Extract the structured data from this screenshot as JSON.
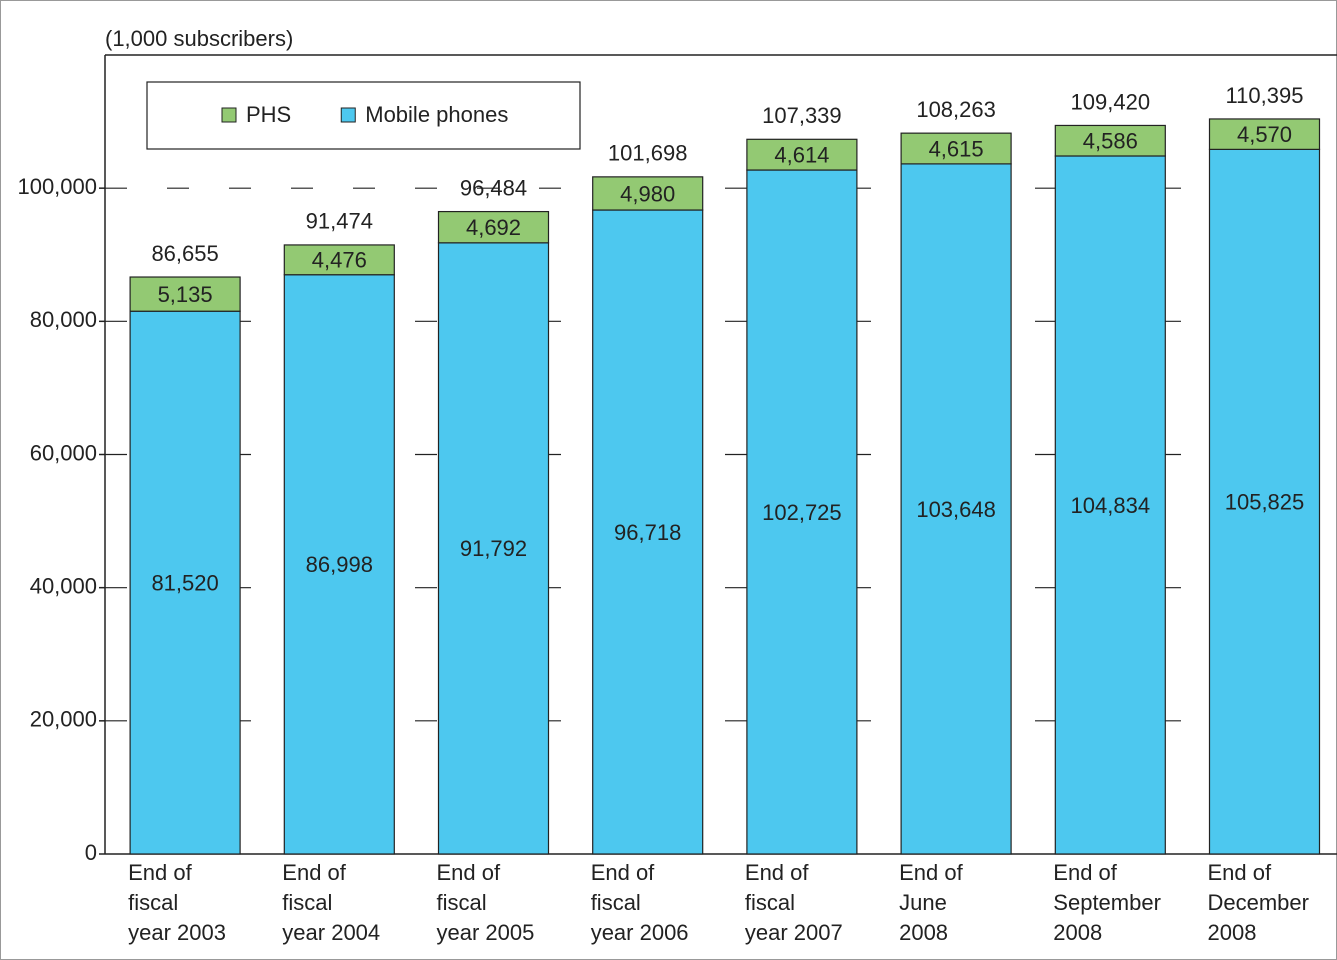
{
  "chart_data": {
    "type": "stacked-bar",
    "y_unit_label": "(1,000 subscribers)",
    "categories": [
      [
        "End of",
        "fiscal",
        "year 2003"
      ],
      [
        "End of",
        "fiscal",
        "year 2004"
      ],
      [
        "End of",
        "fiscal",
        "year 2005"
      ],
      [
        "End of",
        "fiscal",
        "year 2006"
      ],
      [
        "End of",
        "fiscal",
        "year 2007"
      ],
      [
        "End of",
        "June",
        "2008"
      ],
      [
        "End of",
        "September",
        "2008"
      ],
      [
        "End of",
        "December",
        "2008"
      ]
    ],
    "series": [
      {
        "name": "Mobile phones",
        "color": "#4dc8ef",
        "values": [
          81520,
          86998,
          91792,
          96718,
          102725,
          103648,
          104834,
          105825
        ],
        "value_labels": [
          "81,520",
          "86,998",
          "91,792",
          "96,718",
          "102,725",
          "103,648",
          "104,834",
          "105,825"
        ]
      },
      {
        "name": "PHS",
        "color": "#93c973",
        "values": [
          5135,
          4476,
          4692,
          4980,
          4614,
          4615,
          4586,
          4570
        ],
        "value_labels": [
          "5,135",
          "4,476",
          "4,692",
          "4,980",
          "4,614",
          "4,615",
          "4,586",
          "4,570"
        ]
      }
    ],
    "totals": [
      86655,
      91474,
      96484,
      101698,
      107339,
      108263,
      109420,
      110395
    ],
    "total_labels": [
      "86,655",
      "91,474",
      "96,484",
      "101,698",
      "107,339",
      "108,263",
      "109,420",
      "110,395"
    ],
    "ylim": [
      0,
      120000
    ],
    "yticks": [
      0,
      {
        "value": 20000,
        "label": "20,000"
      },
      {
        "value": 40000,
        "label": "40,000"
      },
      {
        "value": 60000,
        "label": "60,000"
      },
      {
        "value": 80000,
        "label": "80,000"
      },
      {
        "value": 100000,
        "label": "100,000"
      }
    ],
    "grid": true,
    "legend": "top-left"
  }
}
